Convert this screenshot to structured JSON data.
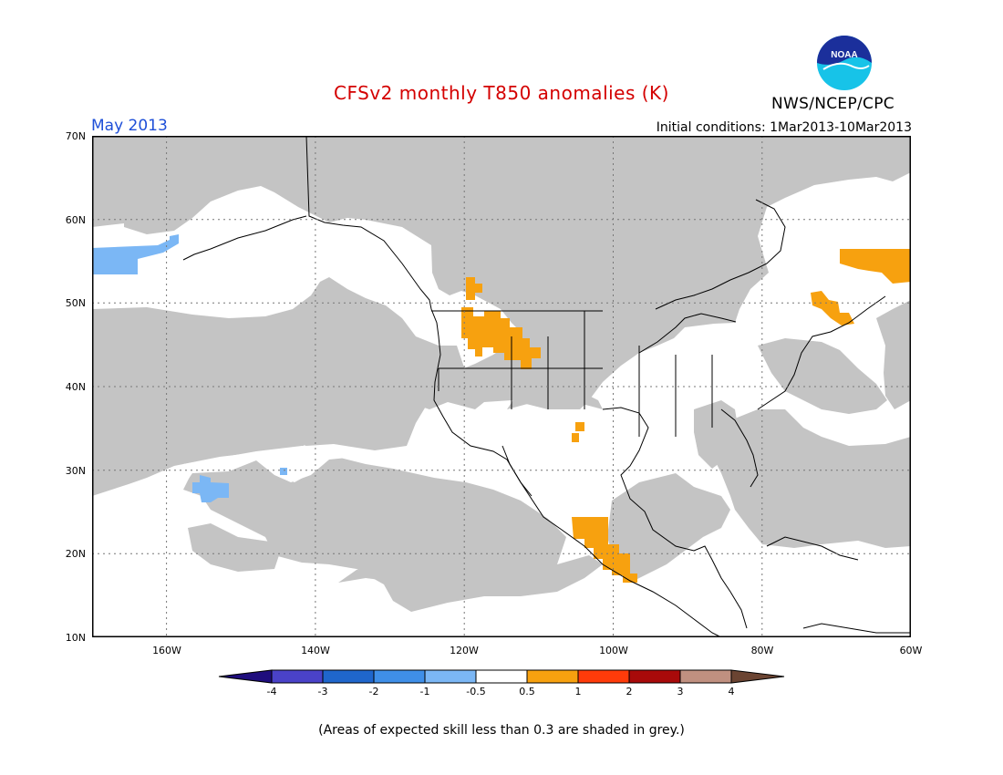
{
  "header": {
    "title": "CFSv2 monthly T850 anomalies (K)",
    "period": "May 2013",
    "initial_conditions": "Initial conditions: 1Mar2013-10Mar2013",
    "agency": "NWS/NCEP/CPC",
    "logo_text": "NOAA",
    "logo_icon": "noaa-logo-icon"
  },
  "colors": {
    "title": "#d40000",
    "period": "#1e4fd8",
    "low_skill_grey": "#c4c4c4",
    "neutral_white": "#ffffff",
    "warm_0_5_to_1": "#f7a10f",
    "cool_m1_to_m0_5": "#7bb7f5",
    "coastline": "#000000",
    "grid": "#777777"
  },
  "map": {
    "lat_labels": [
      "70N",
      "60N",
      "50N",
      "40N",
      "30N",
      "20N",
      "10N"
    ],
    "lon_labels": [
      "160W",
      "140W",
      "120W",
      "100W",
      "80W",
      "60W"
    ]
  },
  "colorbar": {
    "labels": [
      "-4",
      "-3",
      "-2",
      "-1",
      "-0.5",
      "0.5",
      "1",
      "2",
      "3",
      "4"
    ],
    "colors": [
      "#1f0d7d",
      "#4a42c8",
      "#1f66cc",
      "#3f8fe8",
      "#7bb7f5",
      "#ffffff",
      "#f7a10f",
      "#ff3b0a",
      "#a80a0a",
      "#c09080",
      "#6b4432"
    ]
  },
  "footnote": "(Areas of expected skill less than 0.3 are shaded in grey.)"
}
